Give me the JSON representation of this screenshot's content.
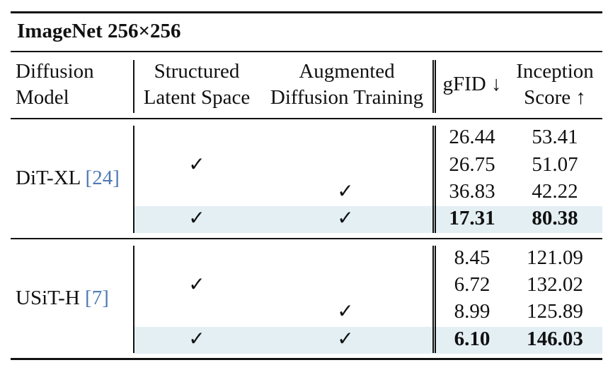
{
  "title": "ImageNet 256×256",
  "headers": {
    "model": [
      "Diffusion",
      "Model"
    ],
    "structured": [
      "Structured",
      "Latent Space"
    ],
    "augmented": [
      "Augmented",
      "Diffusion Training"
    ],
    "gfid": "gFID ↓",
    "inception": [
      "Inception",
      "Score ↑"
    ]
  },
  "check_symbol": "✓",
  "groups": [
    {
      "model": "DiT-XL",
      "ref": "[24]",
      "ref_num": "24",
      "rows": [
        {
          "structured": false,
          "augmented": false,
          "gfid": "26.44",
          "is": "53.41",
          "highlight": false
        },
        {
          "structured": true,
          "augmented": false,
          "gfid": "26.75",
          "is": "51.07",
          "highlight": false
        },
        {
          "structured": false,
          "augmented": true,
          "gfid": "36.83",
          "is": "42.22",
          "highlight": false
        },
        {
          "structured": true,
          "augmented": true,
          "gfid": "17.31",
          "is": "80.38",
          "highlight": true
        }
      ]
    },
    {
      "model": "USiT-H",
      "ref": "[7]",
      "ref_num": "7",
      "rows": [
        {
          "structured": false,
          "augmented": false,
          "gfid": "8.45",
          "is": "121.09",
          "highlight": false
        },
        {
          "structured": true,
          "augmented": false,
          "gfid": "6.72",
          "is": "132.02",
          "highlight": false
        },
        {
          "structured": false,
          "augmented": true,
          "gfid": "8.99",
          "is": "125.89",
          "highlight": false
        },
        {
          "structured": true,
          "augmented": true,
          "gfid": "6.10",
          "is": "146.03",
          "highlight": true
        }
      ]
    }
  ],
  "colors": {
    "highlight": "#e4eff4",
    "reference": "#4f79b5"
  }
}
